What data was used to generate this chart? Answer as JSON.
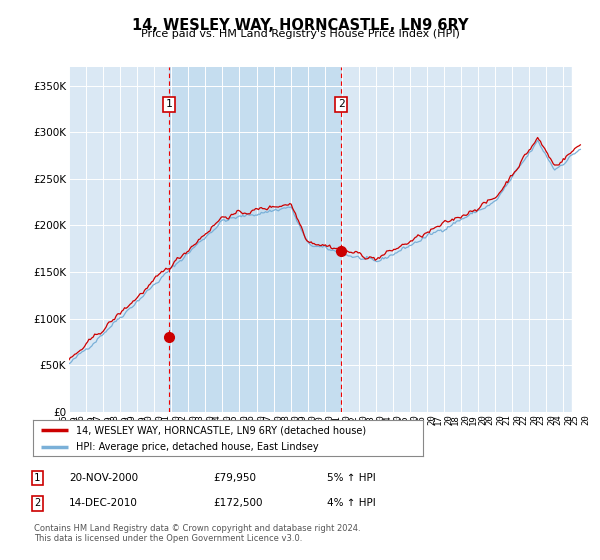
{
  "title": "14, WESLEY WAY, HORNCASTLE, LN9 6RY",
  "subtitle": "Price paid vs. HM Land Registry's House Price Index (HPI)",
  "legend_line1": "14, WESLEY WAY, HORNCASTLE, LN9 6RY (detached house)",
  "legend_line2": "HPI: Average price, detached house, East Lindsey",
  "sale1_date": "20-NOV-2000",
  "sale1_price": "£79,950",
  "sale1_hpi": "5% ↑ HPI",
  "sale2_date": "14-DEC-2010",
  "sale2_price": "£172,500",
  "sale2_hpi": "4% ↑ HPI",
  "footnote": "Contains HM Land Registry data © Crown copyright and database right 2024.\nThis data is licensed under the Open Government Licence v3.0.",
  "hpi_color": "#7ab0d8",
  "price_color": "#cc0000",
  "sale_marker_color": "#cc0000",
  "dashed_line_color": "#ee0000",
  "background_color": "#dae8f4",
  "shade_color": "#c5ddef",
  "ylim": [
    0,
    370000
  ],
  "ylabel_ticks": [
    0,
    50000,
    100000,
    150000,
    200000,
    250000,
    300000,
    350000
  ],
  "x_start_year": 1995,
  "x_end_year": 2025
}
